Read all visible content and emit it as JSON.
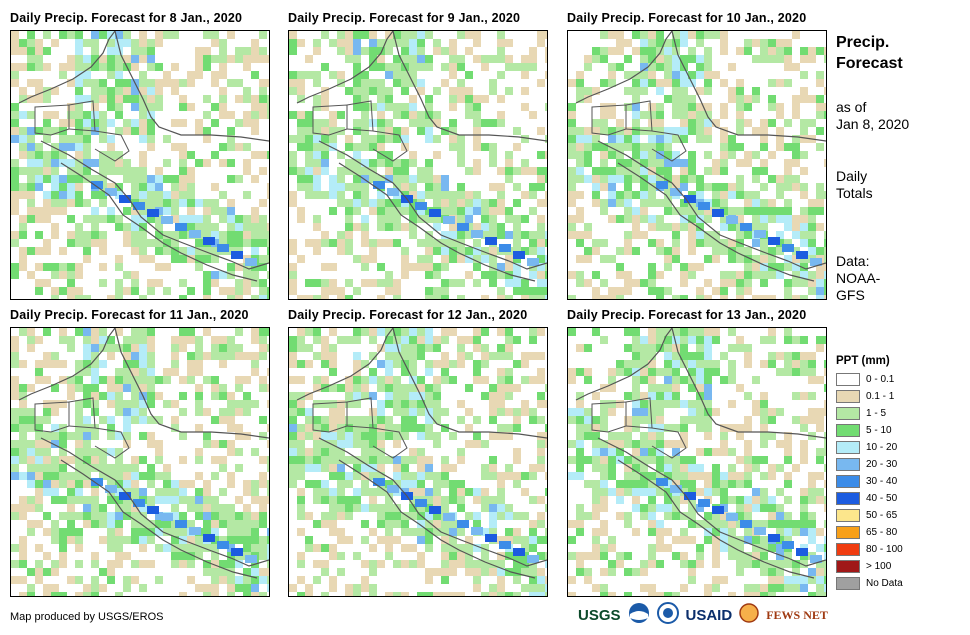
{
  "panels": [
    {
      "title": "Daily Precip. Forecast for 8 Jan., 2020",
      "day": 8
    },
    {
      "title": "Daily Precip. Forecast for 9 Jan., 2020",
      "day": 9
    },
    {
      "title": "Daily Precip. Forecast for 10 Jan., 2020",
      "day": 10
    },
    {
      "title": "Daily Precip. Forecast for 11 Jan., 2020",
      "day": 11
    },
    {
      "title": "Daily Precip. Forecast for 12 Jan., 2020",
      "day": 12
    },
    {
      "title": "Daily Precip. Forecast for 13 Jan., 2020",
      "day": 13
    }
  ],
  "side": {
    "title_line1": "Precip.",
    "title_line2": "Forecast",
    "asof_line1": "as of",
    "asof_line2": "Jan 8, 2020",
    "totals_line1": "Daily",
    "totals_line2": "Totals",
    "data_line1": "Data:",
    "data_line2": "NOAA-",
    "data_line3": "GFS"
  },
  "legend": {
    "title": "PPT (mm)",
    "items": [
      {
        "label": "0 - 0.1",
        "color": "#ffffff"
      },
      {
        "label": "0.1 - 1",
        "color": "#e8d8b4"
      },
      {
        "label": "1 - 5",
        "color": "#b4e8a4"
      },
      {
        "label": "5 - 10",
        "color": "#72dc72"
      },
      {
        "label": "10 - 20",
        "color": "#b4ecf8"
      },
      {
        "label": "20 - 30",
        "color": "#78b8f0"
      },
      {
        "label": "30 - 40",
        "color": "#3c8ce8"
      },
      {
        "label": "40 - 50",
        "color": "#1c5ce0"
      },
      {
        "label": "50 - 65",
        "color": "#fce68c"
      },
      {
        "label": "65 - 80",
        "color": "#f8a018"
      },
      {
        "label": "80 - 100",
        "color": "#f03c10"
      },
      {
        "label": "> 100",
        "color": "#a01818"
      },
      {
        "label": "No Data",
        "color": "#a0a0a0"
      }
    ]
  },
  "credit": "Map produced by USGS/EROS",
  "logos": {
    "usgs": "USGS",
    "usaid": "USAID",
    "fewsnet": "FEWS NET"
  }
}
